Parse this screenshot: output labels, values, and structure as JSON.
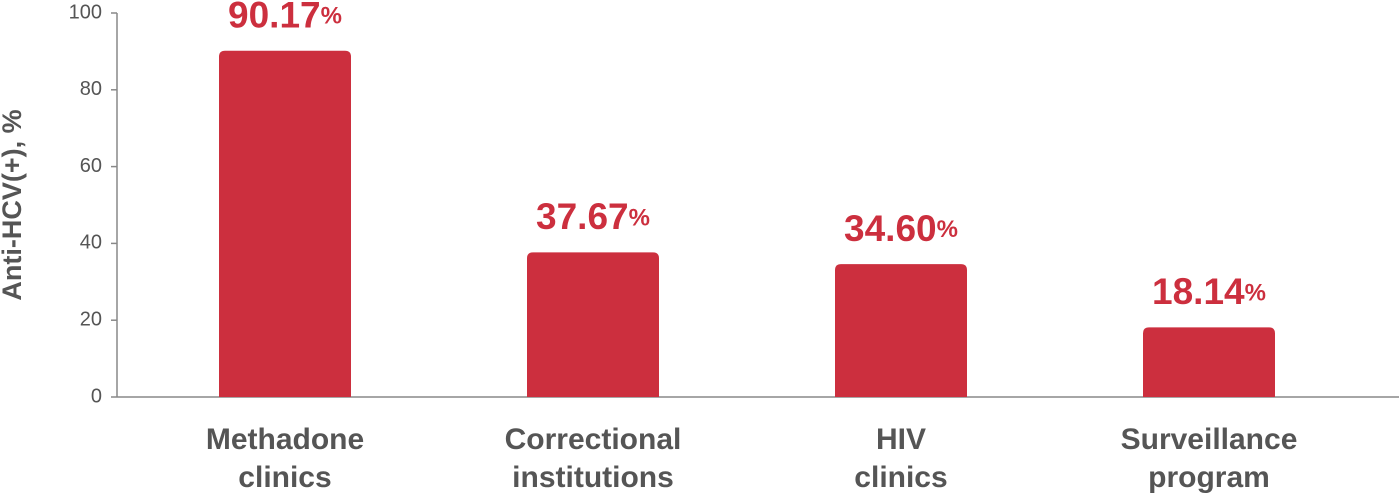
{
  "chart_data": {
    "type": "bar",
    "y_label": "Anti-HCV(+), %",
    "categories": [
      [
        "Methadone",
        "clinics"
      ],
      [
        "Correctional",
        "institutions"
      ],
      [
        "HIV",
        "clinics"
      ],
      [
        "Surveillance",
        "program"
      ]
    ],
    "values": [
      90.17,
      37.67,
      34.6,
      18.14
    ],
    "value_labels": [
      "90.17%",
      "37.67%",
      "34.60%",
      "18.14%"
    ],
    "color": "#cc2f3e",
    "ylim": [
      0,
      100
    ],
    "yticks": [
      0,
      20,
      40,
      60,
      80,
      100
    ],
    "grid": false
  }
}
